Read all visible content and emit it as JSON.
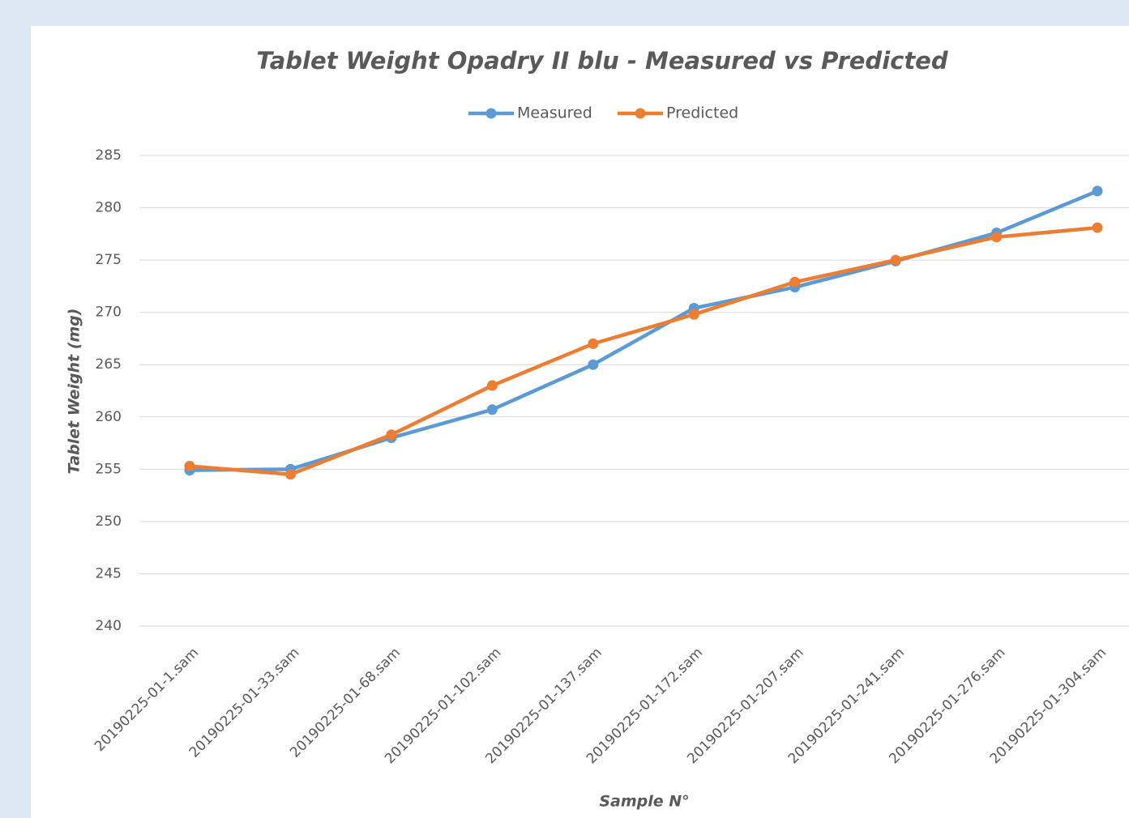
{
  "chart_data": {
    "type": "line",
    "title": "Tablet Weight Opadry II blu - Measured vs Predicted",
    "x_label": "Sample N°",
    "y_label": "Tablet Weight (mg)",
    "categories": [
      "20190225-01-1.sam",
      "20190225-01-33.sam",
      "20190225-01-68.sam",
      "20190225-01-102.sam",
      "20190225-01-137.sam",
      "20190225-01-172.sam",
      "20190225-01-207.sam",
      "20190225-01-241.sam",
      "20190225-01-276.sam",
      "20190225-01-304.sam"
    ],
    "series": [
      {
        "name": "Measured",
        "color": "#5b9bd5",
        "values": [
          254.9,
          255.0,
          258.0,
          260.7,
          265.0,
          270.4,
          272.4,
          274.9,
          277.6,
          281.6
        ]
      },
      {
        "name": "Predicted",
        "color": "#ed7d31",
        "values": [
          255.3,
          254.5,
          258.3,
          263.0,
          267.0,
          269.8,
          272.9,
          275.0,
          277.2,
          278.1
        ]
      }
    ],
    "ylim": [
      240,
      285
    ],
    "yticks": [
      240,
      245,
      250,
      255,
      260,
      265,
      270,
      275,
      280,
      285
    ],
    "grid": true,
    "legend": "top"
  }
}
